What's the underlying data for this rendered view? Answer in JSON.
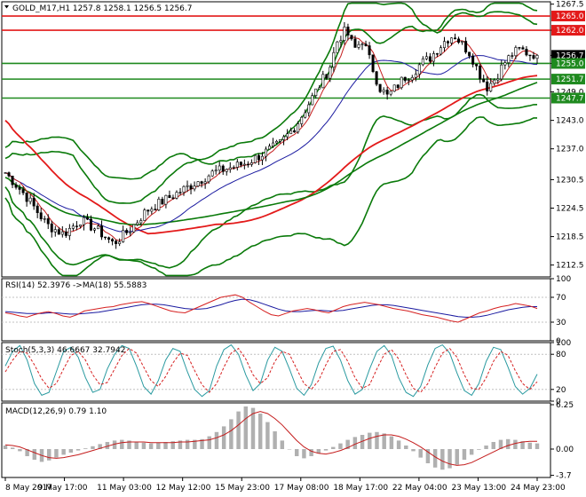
{
  "chart_data": [
    {
      "type": "candlestick",
      "panel": "price",
      "header": "GOLD_M17,H1  1257.8 1258.1 1256.5 1256.7",
      "ylim": [
        1210.0,
        1268.0
      ],
      "y_ticks": [
        "1267.5",
        "1262.0",
        "1256.7",
        "1255.0",
        "1249.0",
        "1243.0",
        "1237.0",
        "1230.5",
        "1224.5",
        "1218.5",
        "1212.5"
      ],
      "x_ticks": [
        "8 May 2017",
        "9 May 17:00",
        "11 May 03:00",
        "12 May 12:00",
        "15 May 23:00",
        "17 May 08:00",
        "18 May 17:00",
        "22 May 04:00",
        "23 May 13:00",
        "24 May 23:00"
      ],
      "price_path": [
        [
          0,
          1232
        ],
        [
          5,
          1227
        ],
        [
          10,
          1221
        ],
        [
          14,
          1219
        ],
        [
          18,
          1222
        ],
        [
          22,
          1220
        ],
        [
          26,
          1217
        ],
        [
          30,
          1220
        ],
        [
          34,
          1224
        ],
        [
          38,
          1226
        ],
        [
          42,
          1228
        ],
        [
          46,
          1230
        ],
        [
          50,
          1232
        ],
        [
          54,
          1233
        ],
        [
          58,
          1234
        ],
        [
          62,
          1236
        ],
        [
          66,
          1238
        ],
        [
          70,
          1242
        ],
        [
          74,
          1248
        ],
        [
          78,
          1254
        ],
        [
          80,
          1260
        ],
        [
          82,
          1262
        ],
        [
          84,
          1258
        ],
        [
          86,
          1260
        ],
        [
          88,
          1255
        ],
        [
          90,
          1250
        ],
        [
          92,
          1248
        ],
        [
          94,
          1250
        ],
        [
          96,
          1252
        ],
        [
          98,
          1253
        ],
        [
          100,
          1255
        ],
        [
          102,
          1256
        ],
        [
          104,
          1258
        ],
        [
          106,
          1260
        ],
        [
          108,
          1261
        ],
        [
          110,
          1259
        ],
        [
          112,
          1257
        ],
        [
          114,
          1253
        ],
        [
          116,
          1250
        ],
        [
          118,
          1252
        ],
        [
          120,
          1255
        ],
        [
          122,
          1257
        ],
        [
          124,
          1258
        ],
        [
          126,
          1257
        ],
        [
          128,
          1257
        ]
      ],
      "x_end": 128,
      "last_price": 1256.7,
      "levels": [
        {
          "value": 1265.0,
          "label": "1265.0",
          "color": "#e31a1a"
        },
        {
          "value": 1262.0,
          "label": "1262.0",
          "color": "#e31a1a"
        },
        {
          "value": 1255.0,
          "label": "1255.0",
          "color": "#1f8a1f"
        },
        {
          "value": 1251.7,
          "label": "1251.7",
          "color": "#1f8a1f"
        },
        {
          "value": 1247.7,
          "label": "1247.7",
          "color": "#1f8a1f"
        }
      ],
      "colors": {
        "candles": "#000000",
        "ma_slow": "#e31a1a",
        "bands": "#0a7a0a",
        "ma_mid": "#1a1aa0",
        "ma_fast": "#c41c1c"
      }
    },
    {
      "type": "line",
      "panel": "rsi",
      "header": "RSI(14) 52.3976  ->MA(18) 55.5883",
      "ylim": [
        0,
        100
      ],
      "y_ticks": [
        "100",
        "70",
        "30",
        "0"
      ],
      "levels": [
        70,
        30
      ],
      "rsi": [
        45,
        43,
        40,
        38,
        42,
        45,
        47,
        44,
        40,
        38,
        42,
        48,
        50,
        52,
        54,
        55,
        58,
        60,
        62,
        63,
        60,
        56,
        52,
        48,
        46,
        45,
        50,
        55,
        60,
        65,
        70,
        72,
        74,
        70,
        62,
        55,
        48,
        42,
        40,
        44,
        48,
        50,
        52,
        50,
        47,
        45,
        50,
        55,
        58,
        60,
        62,
        60,
        58,
        55,
        52,
        50,
        48,
        45,
        42,
        40,
        38,
        35,
        32,
        30,
        35,
        40,
        45,
        48,
        52,
        55,
        57,
        60,
        58,
        56,
        52
      ],
      "rsi_ma": [
        47,
        46,
        45,
        44,
        44,
        44,
        45,
        45,
        44,
        43,
        43,
        44,
        45,
        46,
        48,
        50,
        52,
        54,
        56,
        58,
        59,
        59,
        58,
        56,
        54,
        52,
        51,
        51,
        52,
        55,
        58,
        62,
        65,
        67,
        66,
        63,
        59,
        55,
        51,
        48,
        47,
        47,
        48,
        49,
        49,
        48,
        48,
        49,
        51,
        53,
        55,
        57,
        58,
        58,
        57,
        55,
        53,
        51,
        49,
        47,
        45,
        43,
        41,
        39,
        38,
        38,
        39,
        41,
        44,
        47,
        50,
        52,
        54,
        55,
        55
      ],
      "colors": {
        "rsi": "#d62020",
        "ma": "#1a1aa0"
      }
    },
    {
      "type": "line",
      "panel": "stochastic",
      "header": "Stoch(5,3,3) 46.6667 32.7942",
      "ylim": [
        0,
        100
      ],
      "y_ticks": [
        "100",
        "80",
        "20",
        "0"
      ],
      "levels": [
        80,
        20
      ],
      "k": [
        60,
        85,
        95,
        70,
        30,
        10,
        15,
        50,
        85,
        92,
        75,
        40,
        15,
        20,
        55,
        80,
        95,
        90,
        60,
        25,
        12,
        35,
        70,
        90,
        85,
        50,
        20,
        8,
        18,
        60,
        88,
        96,
        80,
        45,
        18,
        30,
        70,
        92,
        85,
        55,
        22,
        10,
        28,
        65,
        90,
        94,
        70,
        35,
        12,
        20,
        55,
        85,
        95,
        78,
        40,
        15,
        8,
        25,
        62,
        90,
        96,
        82,
        48,
        18,
        10,
        30,
        68,
        92,
        88,
        58,
        25,
        12,
        22,
        46
      ],
      "d": [
        50,
        70,
        85,
        82,
        62,
        38,
        22,
        30,
        55,
        78,
        85,
        70,
        45,
        28,
        32,
        55,
        78,
        90,
        82,
        58,
        35,
        25,
        42,
        65,
        82,
        78,
        52,
        28,
        15,
        30,
        58,
        82,
        90,
        72,
        45,
        30,
        40,
        68,
        85,
        80,
        55,
        30,
        20,
        35,
        62,
        85,
        88,
        68,
        40,
        22,
        28,
        55,
        80,
        88,
        72,
        45,
        22,
        15,
        30,
        58,
        82,
        90,
        75,
        45,
        22,
        20,
        40,
        68,
        85,
        78,
        52,
        30,
        20,
        33
      ],
      "colors": {
        "k": "#2a9aa0",
        "d": "#d62020"
      }
    },
    {
      "type": "bar",
      "panel": "macd",
      "header": "MACD(12,26,9) 0.79 1.10",
      "ylim": [
        -4.0,
        6.5
      ],
      "y_ticks": [
        "6.25",
        "0.00",
        "-3.7"
      ],
      "hist": [
        0.5,
        0.2,
        -0.3,
        -1.0,
        -1.5,
        -1.8,
        -1.6,
        -1.2,
        -0.8,
        -0.5,
        -0.2,
        0.1,
        0.4,
        0.7,
        1.0,
        1.2,
        1.3,
        1.2,
        1.0,
        0.9,
        0.8,
        0.9,
        1.0,
        1.1,
        1.2,
        1.3,
        1.3,
        1.4,
        1.8,
        2.4,
        3.2,
        4.2,
        5.3,
        6.0,
        5.8,
        5.0,
        3.8,
        2.5,
        1.2,
        0.0,
        -1.0,
        -1.3,
        -1.0,
        -0.6,
        -0.2,
        0.3,
        0.8,
        1.3,
        1.7,
        2.0,
        2.3,
        2.4,
        2.2,
        1.8,
        1.2,
        0.5,
        -0.3,
        -1.2,
        -2.0,
        -2.6,
        -2.9,
        -2.7,
        -2.2,
        -1.5,
        -0.8,
        -0.1,
        0.5,
        1.0,
        1.3,
        1.4,
        1.3,
        1.1,
        0.9,
        0.8
      ],
      "signal": [
        0.6,
        0.5,
        0.3,
        -0.1,
        -0.5,
        -0.9,
        -1.2,
        -1.3,
        -1.2,
        -1.0,
        -0.8,
        -0.5,
        -0.2,
        0.1,
        0.4,
        0.7,
        0.9,
        1.0,
        1.0,
        1.0,
        0.9,
        0.9,
        0.9,
        0.9,
        1.0,
        1.0,
        1.1,
        1.2,
        1.3,
        1.6,
        2.0,
        2.6,
        3.4,
        4.3,
        5.0,
        5.3,
        5.0,
        4.3,
        3.4,
        2.3,
        1.2,
        0.3,
        -0.3,
        -0.6,
        -0.7,
        -0.5,
        -0.2,
        0.2,
        0.7,
        1.1,
        1.5,
        1.8,
        2.0,
        2.0,
        1.8,
        1.4,
        0.9,
        0.3,
        -0.4,
        -1.1,
        -1.7,
        -2.1,
        -2.3,
        -2.2,
        -1.9,
        -1.4,
        -0.9,
        -0.4,
        0.1,
        0.5,
        0.8,
        1.0,
        1.1,
        1.1
      ],
      "colors": {
        "hist": "#b0b0b0",
        "signal": "#c41c1c"
      }
    }
  ]
}
